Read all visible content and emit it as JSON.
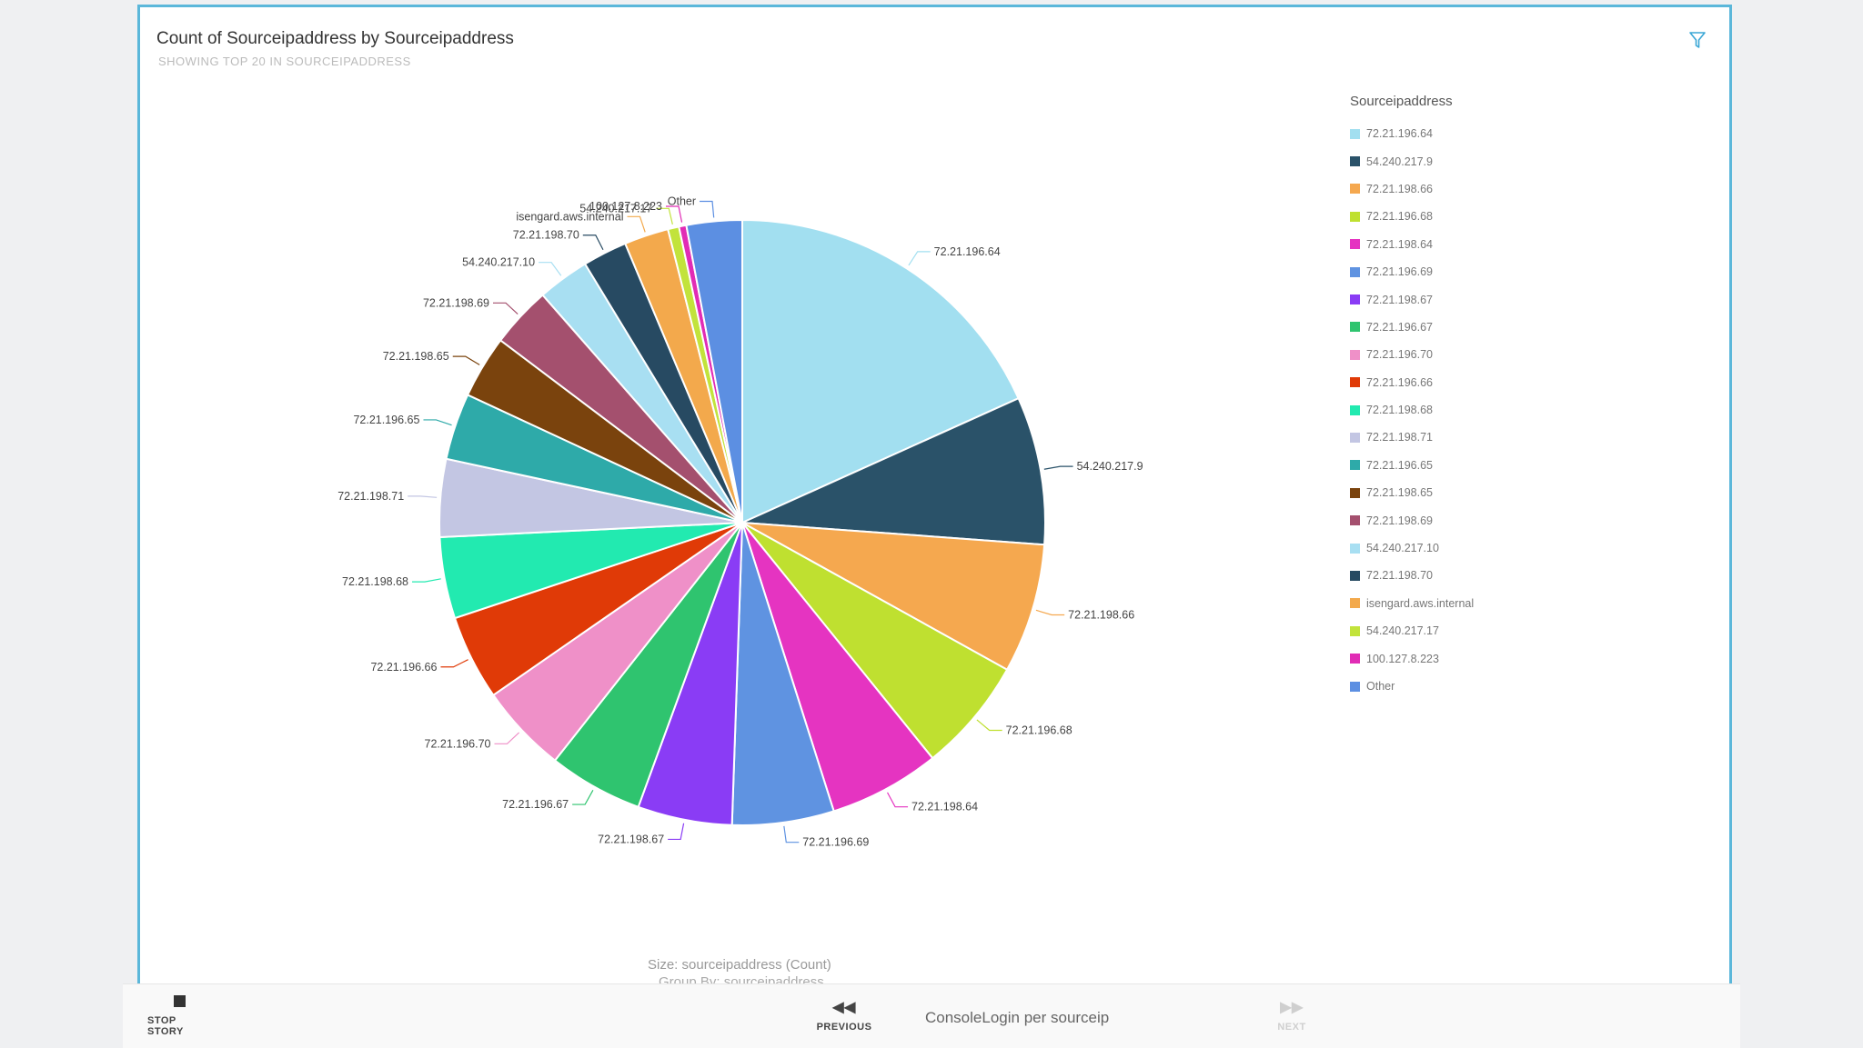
{
  "card": {
    "title": "Count of Sourceipaddress by Sourceipaddress",
    "subtitle": "SHOWING TOP 20 IN SOURCEIPADDRESS",
    "filter_icon": "funnel-icon"
  },
  "colors": {
    "card_border": "#5bb7da",
    "background": "#eff0f2"
  },
  "legend": {
    "title": "Sourceipaddress",
    "items": [
      {
        "label": "72.21.196.64",
        "color": "#a2dff0"
      },
      {
        "label": "54.240.217.9",
        "color": "#2a5269"
      },
      {
        "label": "72.21.198.66",
        "color": "#f5a84f"
      },
      {
        "label": "72.21.196.68",
        "color": "#bfe030"
      },
      {
        "label": "72.21.198.64",
        "color": "#e534c1"
      },
      {
        "label": "72.21.196.69",
        "color": "#5f93e1"
      },
      {
        "label": "72.21.198.67",
        "color": "#8a3cf5"
      },
      {
        "label": "72.21.196.67",
        "color": "#2fc46f"
      },
      {
        "label": "72.21.196.70",
        "color": "#ef90c8"
      },
      {
        "label": "72.21.196.66",
        "color": "#e03a07"
      },
      {
        "label": "72.21.198.68",
        "color": "#22eab0"
      },
      {
        "label": "72.21.198.71",
        "color": "#c3c6e3"
      },
      {
        "label": "72.21.196.65",
        "color": "#2eaaa9"
      },
      {
        "label": "72.21.198.65",
        "color": "#7a430d"
      },
      {
        "label": "72.21.198.69",
        "color": "#a4506e"
      },
      {
        "label": "54.240.217.10",
        "color": "#a8dff2"
      },
      {
        "label": "72.21.198.70",
        "color": "#274a62"
      },
      {
        "label": "isengard.aws.internal",
        "color": "#f3a94c"
      },
      {
        "label": "54.240.217.17",
        "color": "#c2e33b"
      },
      {
        "label": "100.127.8.223",
        "color": "#e12cb5"
      },
      {
        "label": "Other",
        "color": "#5c8fe2"
      }
    ]
  },
  "chart_data": {
    "type": "pie",
    "title": "Count of Sourceipaddress by Sourceipaddress",
    "subtitle": "SHOWING TOP 20 IN SOURCEIPADDRESS",
    "slices": [
      {
        "label": "72.21.196.64",
        "value": 18.5,
        "color": "#a2dff0"
      },
      {
        "label": "54.240.217.9",
        "value": 8.0,
        "color": "#2a5269"
      },
      {
        "label": "72.21.198.66",
        "value": 7.0,
        "color": "#f5a84f"
      },
      {
        "label": "72.21.196.68",
        "value": 6.2,
        "color": "#bfe030"
      },
      {
        "label": "72.21.198.64",
        "value": 6.0,
        "color": "#e534c1"
      },
      {
        "label": "72.21.196.69",
        "value": 5.5,
        "color": "#5f93e1"
      },
      {
        "label": "72.21.198.67",
        "value": 5.1,
        "color": "#8a3cf5"
      },
      {
        "label": "72.21.196.67",
        "value": 5.1,
        "color": "#2fc46f"
      },
      {
        "label": "72.21.196.70",
        "value": 4.8,
        "color": "#ef90c8"
      },
      {
        "label": "72.21.196.66",
        "value": 4.6,
        "color": "#e03a07"
      },
      {
        "label": "72.21.198.68",
        "value": 4.4,
        "color": "#22eab0"
      },
      {
        "label": "72.21.198.71",
        "value": 4.2,
        "color": "#c3c6e3"
      },
      {
        "label": "72.21.196.65",
        "value": 3.6,
        "color": "#2eaaa9"
      },
      {
        "label": "72.21.198.65",
        "value": 3.4,
        "color": "#7a430d"
      },
      {
        "label": "72.21.198.69",
        "value": 3.3,
        "color": "#a4506e"
      },
      {
        "label": "54.240.217.10",
        "value": 2.8,
        "color": "#a8dff2"
      },
      {
        "label": "72.21.198.70",
        "value": 2.4,
        "color": "#274a62"
      },
      {
        "label": "isengard.aws.internal",
        "value": 2.4,
        "color": "#f3a94c"
      },
      {
        "label": "54.240.217.17",
        "value": 0.6,
        "color": "#c2e33b"
      },
      {
        "label": "100.127.8.223",
        "value": 0.4,
        "color": "#e12cb5"
      },
      {
        "label": "Other",
        "value": 3.0,
        "color": "#5c8fe2"
      }
    ],
    "legend_position": "right",
    "size_caption": "Size: sourceipaddress (Count)",
    "group_caption": "Group By: sourceipaddress"
  },
  "footer": {
    "stop_label": "STOP STORY",
    "previous_label": "PREVIOUS",
    "story_name": "ConsoleLogin per sourceip",
    "next_label": "NEXT",
    "stop_icon": "stop-icon",
    "previous_icon": "rewind-icon",
    "next_icon": "fast-forward-icon"
  }
}
